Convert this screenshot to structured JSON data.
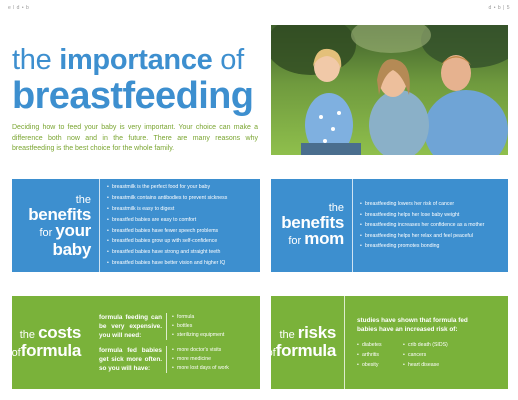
{
  "page": {
    "corner_left": "e l d • b",
    "corner_right": "d • b | 5"
  },
  "title": {
    "word1": "the",
    "word2": "importance",
    "word3": "of",
    "line2": "breastfeeding"
  },
  "intro": "Deciding how to feed your baby is very important. Your choice can make a difference both now and in the future. There are many reasons why breastfeeding is the best choice for the whole family.",
  "photo": {
    "alt_icon": "family-photo"
  },
  "benefits_baby": {
    "h1": "the",
    "h2": "benefits",
    "h3_small": "for",
    "h3_big": "your",
    "h4": "baby",
    "items": [
      "breastmilk is the perfect food for your baby",
      "breastmilk contains antibodies to prevent sickness",
      "breastmilk is easy to digest",
      "breastfed babies are easy to comfort",
      "breastfed babies have fewer speech problems",
      "breastfed babies grow up with self-confidence",
      "breastfed babies have strong and straight teeth",
      "breastfed babies have better vision and higher IQ"
    ]
  },
  "benefits_mom": {
    "h1": "the",
    "h2": "benefits",
    "h3_small": "for",
    "h3_big": "mom",
    "items": [
      "breastfeeding lowers her risk of cancer",
      "breastfeeding helps her lose baby weight",
      "breastfeeding increases her confidence as a mother",
      "breastfeeding helps her relax and feel peaceful",
      "breastfeeding promotes bonding"
    ]
  },
  "costs": {
    "h1_small": "the",
    "h1_big": "costs",
    "h2_small": "of",
    "h2_big": "formula",
    "q1": "formula feeding can be very expensive. you will need:",
    "q1_items": [
      "formula",
      "bottles",
      "sterilizing equipment"
    ],
    "q2": "formula fed babies get sick more often. so you will have:",
    "q2_items": [
      "more doctor's visits",
      "more medicine",
      "more lost days of work"
    ]
  },
  "risks": {
    "h1_small": "the",
    "h1_big": "risks",
    "h2_small": "of",
    "h2_big": "formula",
    "intro": "studies have shown that formula fed babies have an increased risk of:",
    "col1": [
      "diabetes",
      "arthritis",
      "obesity"
    ],
    "col2": [
      "crib death (SIDS)",
      "cancers",
      "heart disease"
    ]
  },
  "colors": {
    "blue": "#3d8fcf",
    "green": "#7ab23a",
    "intro_text": "#7aa531"
  }
}
